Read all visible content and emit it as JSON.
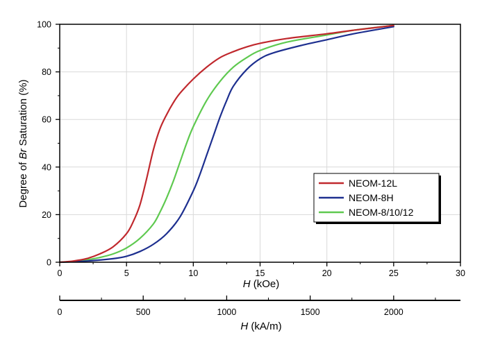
{
  "chart_data": {
    "type": "line",
    "ylabel_parts": [
      "Degree of ",
      "Br",
      " Saturation (%)"
    ],
    "xlabel_primary": {
      "symbol": "H",
      "unit": " (kOe)"
    },
    "xlabel_secondary": {
      "symbol": "H",
      "unit": " (kA/m)"
    },
    "xlim": [
      0,
      30
    ],
    "ylim": [
      0,
      100
    ],
    "x_ticks": [
      "0",
      "5",
      "10",
      "15",
      "20",
      "25",
      "30"
    ],
    "y_ticks": [
      "0",
      "20",
      "40",
      "60",
      "80",
      "100"
    ],
    "secondary_ticks": [
      0,
      500,
      1000,
      1500,
      2000
    ],
    "secondary_tick_labels": [
      "0",
      "500",
      "1000",
      "1500",
      "2000"
    ],
    "secondary_range_kA_per_m": [
      0,
      2400
    ],
    "grid": true,
    "legend_position": "lower-right",
    "series": [
      {
        "name": "NEOM-12L",
        "color": "#c0282d",
        "x": [
          0,
          1,
          2,
          3,
          4,
          5,
          5.5,
          6,
          6.5,
          7,
          7.5,
          8,
          8.5,
          9,
          10,
          11,
          12,
          13,
          14,
          15,
          17,
          20,
          22,
          25
        ],
        "y": [
          0,
          0.5,
          1.5,
          3.5,
          6.5,
          12,
          17,
          24,
          35,
          47,
          56,
          62,
          67,
          71,
          77,
          82,
          86,
          88.5,
          90.5,
          92,
          94,
          96,
          97.5,
          99.5
        ]
      },
      {
        "name": "NEOM-8H",
        "color": "#1d2f8f",
        "x": [
          0,
          2,
          4,
          5,
          6,
          7,
          8,
          9,
          10,
          10.5,
          11,
          11.5,
          12,
          12.5,
          13,
          14,
          15,
          16,
          18,
          20,
          22,
          25
        ],
        "y": [
          0,
          0.5,
          1.5,
          2.5,
          4.5,
          7.5,
          12,
          19,
          30,
          37,
          45,
          53,
          61,
          68,
          74,
          81,
          85.5,
          88,
          91,
          93.5,
          96,
          99
        ]
      },
      {
        "name": "NEOM-8/10/12",
        "color": "#5ec94f",
        "x": [
          0,
          1,
          2,
          3,
          4,
          5,
          6,
          7,
          7.5,
          8,
          8.5,
          9,
          9.5,
          10,
          11,
          12,
          13,
          14,
          15,
          17,
          20,
          22,
          25
        ],
        "y": [
          0,
          0.3,
          1,
          2,
          3.5,
          6,
          10,
          16,
          21,
          27,
          34,
          42,
          50,
          57,
          68,
          76,
          82,
          86,
          89,
          92.5,
          95.5,
          97.5,
          99.5
        ]
      }
    ]
  }
}
